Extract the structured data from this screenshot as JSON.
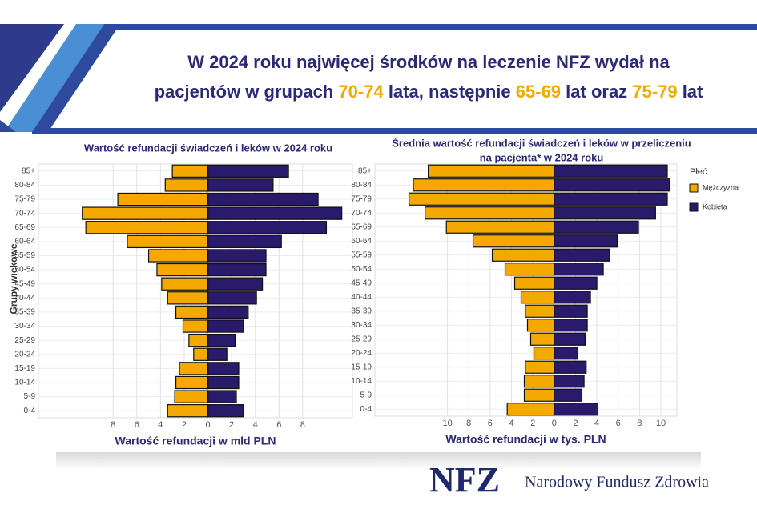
{
  "header": {
    "title_line1": "W 2024 roku najwięcej środków na leczenie NFZ wydał na",
    "title_line2": [
      "pacjentów w grupach ",
      "70-74",
      " lata, następnie ",
      "65-69",
      " lat oraz ",
      "75-79",
      " lat"
    ]
  },
  "chart_data": [
    {
      "type": "bar",
      "orientation": "pyramid",
      "title": "Wartość refundacji świadczeń i leków w 2024 roku",
      "xlabel": "Wartość refundacji w mld PLN",
      "ylabel": "Grupy wiekowe",
      "categories": [
        "85+",
        "80-84",
        "75-79",
        "70-74",
        "65-69",
        "60-64",
        "55-59",
        "50-54",
        "45-49",
        "40-44",
        "35-39",
        "30-34",
        "25-29",
        "20-24",
        "15-19",
        "10-14",
        "5-9",
        "0-4"
      ],
      "series": [
        {
          "name": "Mężczyzna",
          "color": "#f5a800",
          "values": [
            -3.0,
            -3.6,
            -7.6,
            -10.6,
            -10.3,
            -6.8,
            -5.0,
            -4.3,
            -3.9,
            -3.4,
            -2.7,
            -2.1,
            -1.6,
            -1.2,
            -2.4,
            -2.7,
            -2.8,
            -3.4
          ]
        },
        {
          "name": "Kobieta",
          "color": "#2a1a6b",
          "values": [
            6.8,
            5.5,
            9.3,
            11.3,
            10.0,
            6.2,
            4.9,
            4.9,
            4.6,
            4.1,
            3.4,
            3.0,
            2.3,
            1.6,
            2.6,
            2.6,
            2.4,
            3.0
          ]
        }
      ],
      "xlim": [
        -14.3,
        12.2
      ],
      "xticks": [
        {
          "value": -8,
          "label": "8"
        },
        {
          "value": -6,
          "label": "6"
        },
        {
          "value": -4,
          "label": "4"
        },
        {
          "value": -2,
          "label": "2"
        },
        0,
        2,
        4,
        6,
        8
      ],
      "grid": true
    },
    {
      "type": "bar",
      "orientation": "pyramid",
      "title": [
        "Średnia wartość refundacji świadczeń i leków w przeliczeniu",
        "na pacjenta* w 2024 roku"
      ],
      "xlabel": "Wartość refundacji w tys. PLN",
      "legend_title": "Płeć",
      "legend": "right",
      "categories": [
        "85+",
        "80-84",
        "75-79",
        "70-74",
        "65-69",
        "60-64",
        "55-59",
        "50-54",
        "45-49",
        "40-44",
        "35-39",
        "30-34",
        "25-29",
        "20-24",
        "15-19",
        "10-14",
        "5-9",
        "0-4"
      ],
      "series": [
        {
          "name": "Mężczyzna",
          "color": "#f5a800",
          "values": [
            -11.8,
            -13.2,
            -13.6,
            -12.1,
            -10.1,
            -7.6,
            -5.8,
            -4.6,
            -3.7,
            -3.1,
            -2.7,
            -2.5,
            -2.2,
            -1.9,
            -2.7,
            -2.8,
            -2.8,
            -4.4
          ]
        },
        {
          "name": "Kobieta",
          "color": "#2a1a6b",
          "values": [
            10.6,
            10.8,
            10.6,
            9.5,
            7.9,
            5.9,
            5.2,
            4.6,
            4.0,
            3.4,
            3.1,
            3.1,
            2.9,
            2.2,
            3.0,
            2.8,
            2.6,
            4.1
          ]
        }
      ],
      "xlim": [
        -16.8,
        11.5
      ],
      "xticks": [
        {
          "value": -10,
          "label": "10"
        },
        {
          "value": -8,
          "label": "8"
        },
        {
          "value": -6,
          "label": "6"
        },
        {
          "value": -4,
          "label": "4"
        },
        {
          "value": -2,
          "label": "2"
        },
        0,
        2,
        4,
        6,
        8,
        10
      ],
      "grid": true
    }
  ],
  "footer": {
    "logo": "NFZ",
    "name": "Narodowy Fundusz Zdrowia"
  }
}
